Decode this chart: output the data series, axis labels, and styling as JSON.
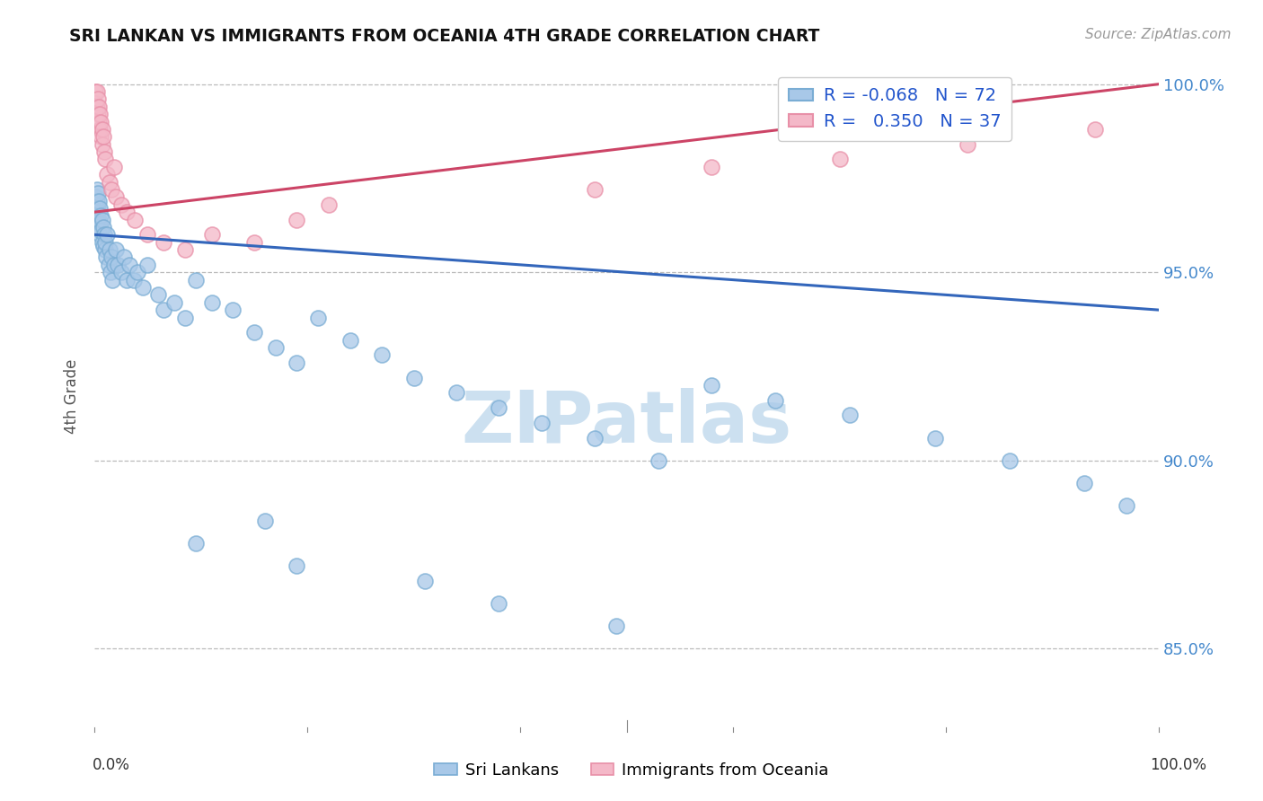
{
  "title": "SRI LANKAN VS IMMIGRANTS FROM OCEANIA 4TH GRADE CORRELATION CHART",
  "source": "Source: ZipAtlas.com",
  "ylabel": "4th Grade",
  "ytick_vals": [
    0.85,
    0.9,
    0.95,
    1.0
  ],
  "ytick_labels": [
    "85.0%",
    "90.0%",
    "95.0%",
    "100.0%"
  ],
  "legend_blue_R": "R = -0.068",
  "legend_blue_N": "N = 72",
  "legend_pink_R": "R =  0.350",
  "legend_pink_N": "N = 37",
  "blue_color": "#a8c8e8",
  "blue_edge_color": "#7aadd4",
  "pink_color": "#f4b8c8",
  "pink_edge_color": "#e890a8",
  "blue_line_color": "#3366bb",
  "pink_line_color": "#cc4466",
  "watermark_color": "#cce0f0",
  "xlim": [
    0.0,
    1.0
  ],
  "ylim": [
    0.828,
    1.006
  ],
  "blue_trend": [
    0.0,
    1.0,
    0.96,
    0.94
  ],
  "pink_trend": [
    0.0,
    1.0,
    0.966,
    1.0
  ],
  "blue_x": [
    0.001,
    0.001,
    0.002,
    0.002,
    0.002,
    0.003,
    0.003,
    0.003,
    0.004,
    0.004,
    0.005,
    0.005,
    0.005,
    0.006,
    0.006,
    0.007,
    0.007,
    0.008,
    0.008,
    0.009,
    0.01,
    0.01,
    0.011,
    0.012,
    0.013,
    0.014,
    0.015,
    0.016,
    0.017,
    0.018,
    0.02,
    0.022,
    0.025,
    0.028,
    0.03,
    0.033,
    0.037,
    0.04,
    0.045,
    0.05,
    0.06,
    0.065,
    0.075,
    0.085,
    0.095,
    0.11,
    0.13,
    0.15,
    0.17,
    0.19,
    0.21,
    0.24,
    0.27,
    0.3,
    0.34,
    0.38,
    0.42,
    0.47,
    0.53,
    0.58,
    0.64,
    0.71,
    0.79,
    0.86,
    0.93,
    0.97,
    0.16,
    0.095,
    0.19,
    0.31,
    0.38,
    0.49
  ],
  "blue_y": [
    0.97,
    0.968,
    0.972,
    0.969,
    0.966,
    0.971,
    0.967,
    0.963,
    0.969,
    0.964,
    0.967,
    0.963,
    0.96,
    0.965,
    0.961,
    0.964,
    0.958,
    0.962,
    0.957,
    0.96,
    0.956,
    0.958,
    0.954,
    0.96,
    0.952,
    0.956,
    0.95,
    0.954,
    0.948,
    0.952,
    0.956,
    0.952,
    0.95,
    0.954,
    0.948,
    0.952,
    0.948,
    0.95,
    0.946,
    0.952,
    0.944,
    0.94,
    0.942,
    0.938,
    0.948,
    0.942,
    0.94,
    0.934,
    0.93,
    0.926,
    0.938,
    0.932,
    0.928,
    0.922,
    0.918,
    0.914,
    0.91,
    0.906,
    0.9,
    0.92,
    0.916,
    0.912,
    0.906,
    0.9,
    0.894,
    0.888,
    0.884,
    0.878,
    0.872,
    0.868,
    0.862,
    0.856
  ],
  "pink_x": [
    0.001,
    0.001,
    0.002,
    0.002,
    0.003,
    0.003,
    0.004,
    0.004,
    0.005,
    0.005,
    0.006,
    0.006,
    0.007,
    0.007,
    0.008,
    0.009,
    0.01,
    0.012,
    0.014,
    0.016,
    0.018,
    0.02,
    0.025,
    0.03,
    0.038,
    0.05,
    0.065,
    0.085,
    0.11,
    0.15,
    0.22,
    0.58,
    0.82,
    0.94,
    0.19,
    0.47,
    0.7
  ],
  "pink_y": [
    0.998,
    0.995,
    0.998,
    0.994,
    0.996,
    0.992,
    0.994,
    0.99,
    0.992,
    0.988,
    0.99,
    0.986,
    0.988,
    0.984,
    0.986,
    0.982,
    0.98,
    0.976,
    0.974,
    0.972,
    0.978,
    0.97,
    0.968,
    0.966,
    0.964,
    0.96,
    0.958,
    0.956,
    0.96,
    0.958,
    0.968,
    0.978,
    0.984,
    0.988,
    0.964,
    0.972,
    0.98
  ]
}
